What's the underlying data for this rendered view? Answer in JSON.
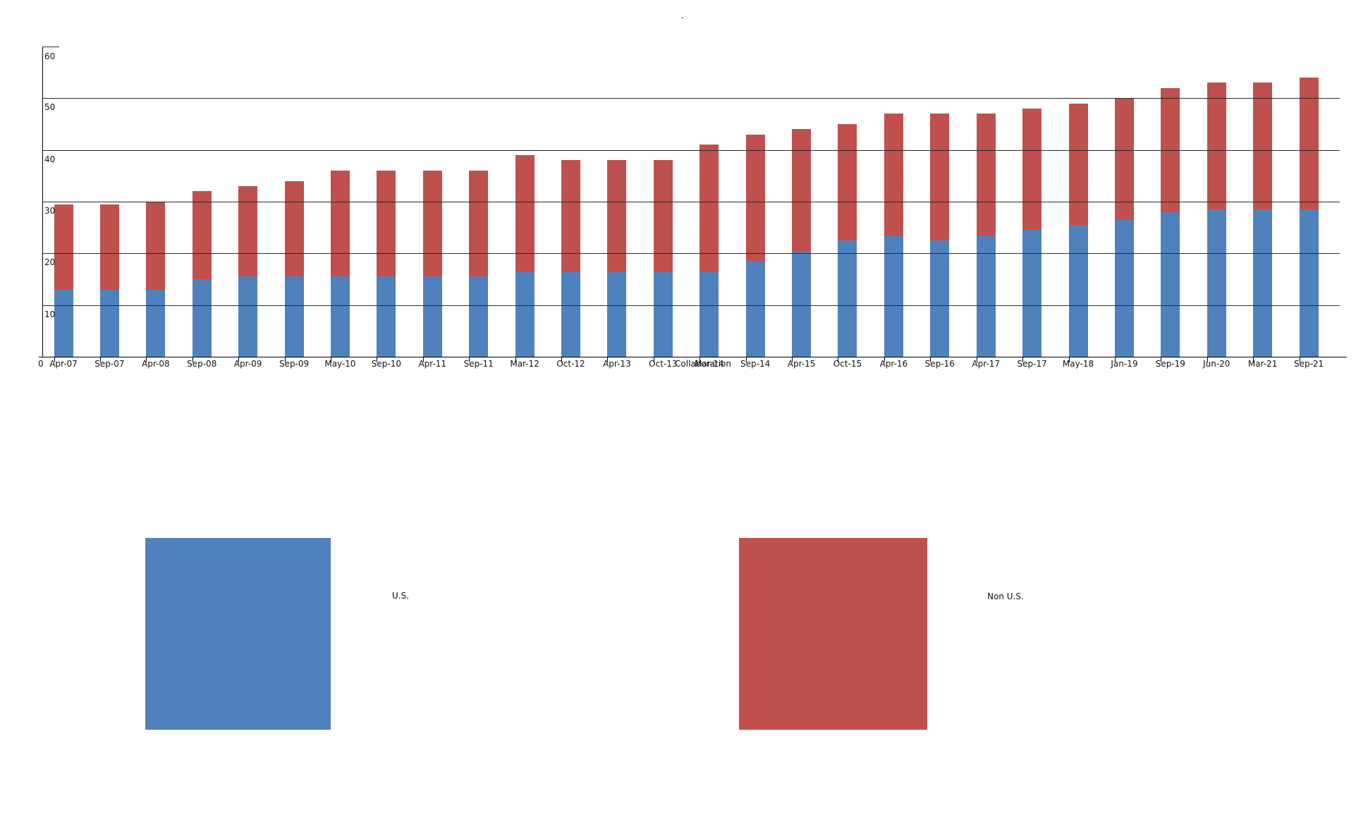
{
  "title": ".",
  "chart_data": {
    "type": "bar",
    "stacked": true,
    "title": ".",
    "xlabel": "Collaboration",
    "ylabel": "",
    "ylim": [
      0,
      60
    ],
    "yticks": [
      0,
      10,
      20,
      30,
      40,
      50,
      60
    ],
    "grid": true,
    "legend_position": "bottom",
    "categories": [
      "Apr-07",
      "Sep-07",
      "Apr-08",
      "Sep-08",
      "Apr-09",
      "Sep-09",
      "May-10",
      "Sep-10",
      "Apr-11",
      "Sep-11",
      "Mar-12",
      "Oct-12",
      "Apr-13",
      "Oct-13",
      "Mar-14",
      "Sep-14",
      "Apr-15",
      "Oct-15",
      "Apr-16",
      "Sep-16",
      "Apr-17",
      "Sep-17",
      "May-18",
      "Jan-19",
      "Sep-19",
      "Jun-20",
      "Mar-21",
      "Sep-21"
    ],
    "series": [
      {
        "name": "U.S.",
        "color": "#4F81BD",
        "values": [
          13,
          13,
          13,
          15,
          15.5,
          15.5,
          15.5,
          15.5,
          15.5,
          15.5,
          16.5,
          16.5,
          16.5,
          16.5,
          16.5,
          18.5,
          20.5,
          22.5,
          23.5,
          22.5,
          23.5,
          24.5,
          25.5,
          26.5,
          28,
          28.5,
          28.5,
          28.5
        ]
      },
      {
        "name": "Non U.S.",
        "color": "#C0504D",
        "values": [
          16.5,
          16.5,
          17,
          17,
          17.5,
          18.5,
          20.5,
          20.5,
          20.5,
          20.5,
          22.5,
          21.5,
          21.5,
          21.5,
          24.5,
          24.5,
          23.5,
          22.5,
          23.5,
          24.5,
          23.5,
          23.5,
          23.5,
          23.5,
          24,
          24.5,
          24.5,
          25.5
        ]
      }
    ],
    "totals": [
      29.5,
      29.5,
      30,
      32,
      33,
      34,
      36,
      36,
      36,
      36,
      39,
      38,
      38,
      38,
      41,
      43,
      44,
      45,
      47,
      47,
      47,
      48,
      49,
      50,
      52,
      53,
      53,
      54
    ]
  },
  "axis": {
    "x_title": "Collaboration",
    "origin_label": "0"
  },
  "legend": {
    "us_label": "U.S.",
    "us_color": "#4F81BD",
    "non_us_label": "Non U.S.",
    "non_us_color": "#C0504D"
  }
}
